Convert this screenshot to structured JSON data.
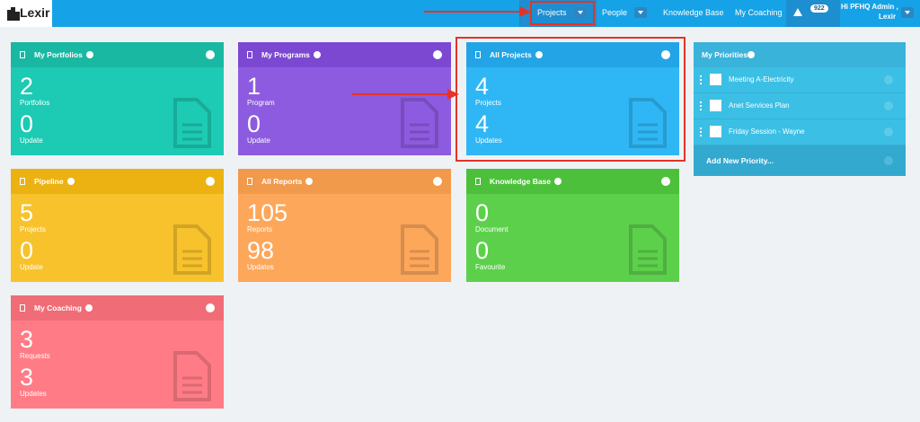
{
  "nav": {
    "logo": "Lexir",
    "items": [
      "Projects",
      "People",
      "Knowledge Base",
      "My Coaching"
    ],
    "badge": "922",
    "greeting": "Hi PFHQ Admin ,",
    "greeting_name": "Lexir"
  },
  "cards": [
    {
      "title": "My Portfolios",
      "stats": [
        {
          "value": 2,
          "label": "Portfolios"
        },
        {
          "value": 0,
          "label": "Update"
        }
      ]
    },
    {
      "title": "My Programs",
      "stats": [
        {
          "value": 1,
          "label": "Program"
        },
        {
          "value": 0,
          "label": "Update"
        }
      ]
    },
    {
      "title": "All Projects",
      "stats": [
        {
          "value": 4,
          "label": "Projects"
        },
        {
          "value": 4,
          "label": "Updates"
        }
      ]
    },
    {
      "title": "Pipeline",
      "stats": [
        {
          "value": 5,
          "label": "Projects"
        },
        {
          "value": 0,
          "label": "Update"
        }
      ]
    },
    {
      "title": "All Reports",
      "stats": [
        {
          "value": 105,
          "label": "Reports"
        },
        {
          "value": 98,
          "label": "Updates"
        }
      ]
    },
    {
      "title": "Knowledge Base",
      "stats": [
        {
          "value": 0,
          "label": "Document"
        },
        {
          "value": 0,
          "label": "Favourite"
        }
      ]
    },
    {
      "title": "My Coaching",
      "stats": [
        {
          "value": 3,
          "label": "Requests"
        },
        {
          "value": 3,
          "label": "Updates"
        }
      ]
    }
  ],
  "priorities": {
    "title": "My Priorities",
    "items": [
      "Meeting A-Electricity",
      "Anet Services Plan",
      "Friday Session - Wayne"
    ],
    "add": "Add New Priority..."
  }
}
